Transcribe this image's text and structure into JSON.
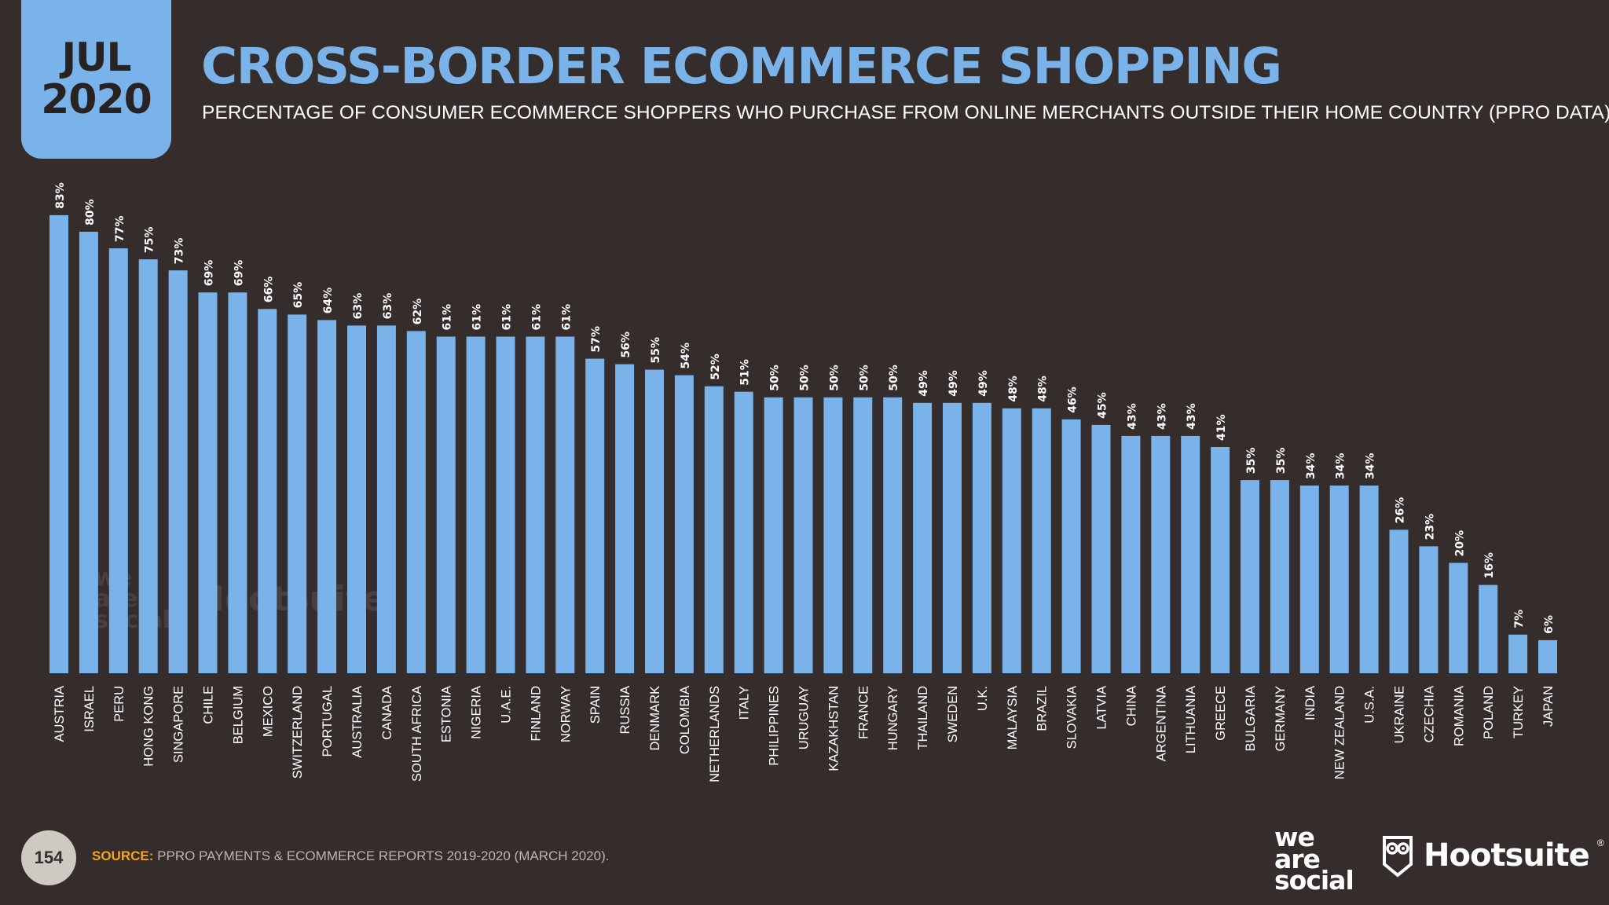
{
  "badge": {
    "month": "JUL",
    "year": "2020"
  },
  "title": "CROSS-BORDER ECOMMERCE SHOPPING",
  "subtitle": "PERCENTAGE OF CONSUMER ECOMMERCE SHOPPERS WHO PURCHASE FROM ONLINE MERCHANTS OUTSIDE THEIR HOME COUNTRY (PPRO DATA)",
  "footer": {
    "page": "154",
    "source_label": "SOURCE:",
    "source_text": "PPRO PAYMENTS & ECOMMERCE REPORTS 2019-2020 (MARCH 2020).",
    "logo_we_are_social": [
      "we",
      "are",
      "social"
    ],
    "logo_hootsuite": "Hootsuite",
    "logo_hootsuite_reg": "®"
  },
  "watermark": {
    "we_are_social": [
      "we",
      "are",
      "social"
    ],
    "hootsuite": "Hootsuite"
  },
  "colors": {
    "background": "#342d2b",
    "bar": "#7ab3ea",
    "accent": "#f6a418",
    "text": "#ffffff"
  },
  "icons": {
    "hootsuite_logo": "owl-icon"
  },
  "chart_data": {
    "type": "bar",
    "orientation": "vertical",
    "value_suffix": "%",
    "ylim": [
      0,
      100
    ],
    "grid": false,
    "categories": [
      "AUSTRIA",
      "ISRAEL",
      "PERU",
      "HONG KONG",
      "SINGAPORE",
      "CHILE",
      "BELGIUM",
      "MEXICO",
      "SWITZERLAND",
      "PORTUGAL",
      "AUSTRALIA",
      "CANADA",
      "SOUTH AFRICA",
      "ESTONIA",
      "NIGERIA",
      "U.A.E.",
      "FINLAND",
      "NORWAY",
      "SPAIN",
      "RUSSIA",
      "DENMARK",
      "COLOMBIA",
      "NETHERLANDS",
      "ITALY",
      "PHILIPPINES",
      "URUGUAY",
      "KAZAKHSTAN",
      "FRANCE",
      "HUNGARY",
      "THAILAND",
      "SWEDEN",
      "U.K.",
      "MALAYSIA",
      "BRAZIL",
      "SLOVAKIA",
      "LATVIA",
      "CHINA",
      "ARGENTINA",
      "LITHUANIA",
      "GREECE",
      "BULGARIA",
      "GERMANY",
      "INDIA",
      "NEW ZEALAND",
      "U.S.A.",
      "UKRAINE",
      "CZECHIA",
      "ROMANIA",
      "POLAND",
      "TURKEY",
      "JAPAN"
    ],
    "values": [
      83,
      80,
      77,
      75,
      73,
      69,
      69,
      66,
      65,
      64,
      63,
      63,
      62,
      61,
      61,
      61,
      61,
      61,
      57,
      56,
      55,
      54,
      52,
      51,
      50,
      50,
      50,
      50,
      50,
      49,
      49,
      49,
      48,
      48,
      46,
      45,
      43,
      43,
      43,
      41,
      35,
      35,
      34,
      34,
      34,
      26,
      23,
      20,
      16,
      7,
      6
    ]
  }
}
